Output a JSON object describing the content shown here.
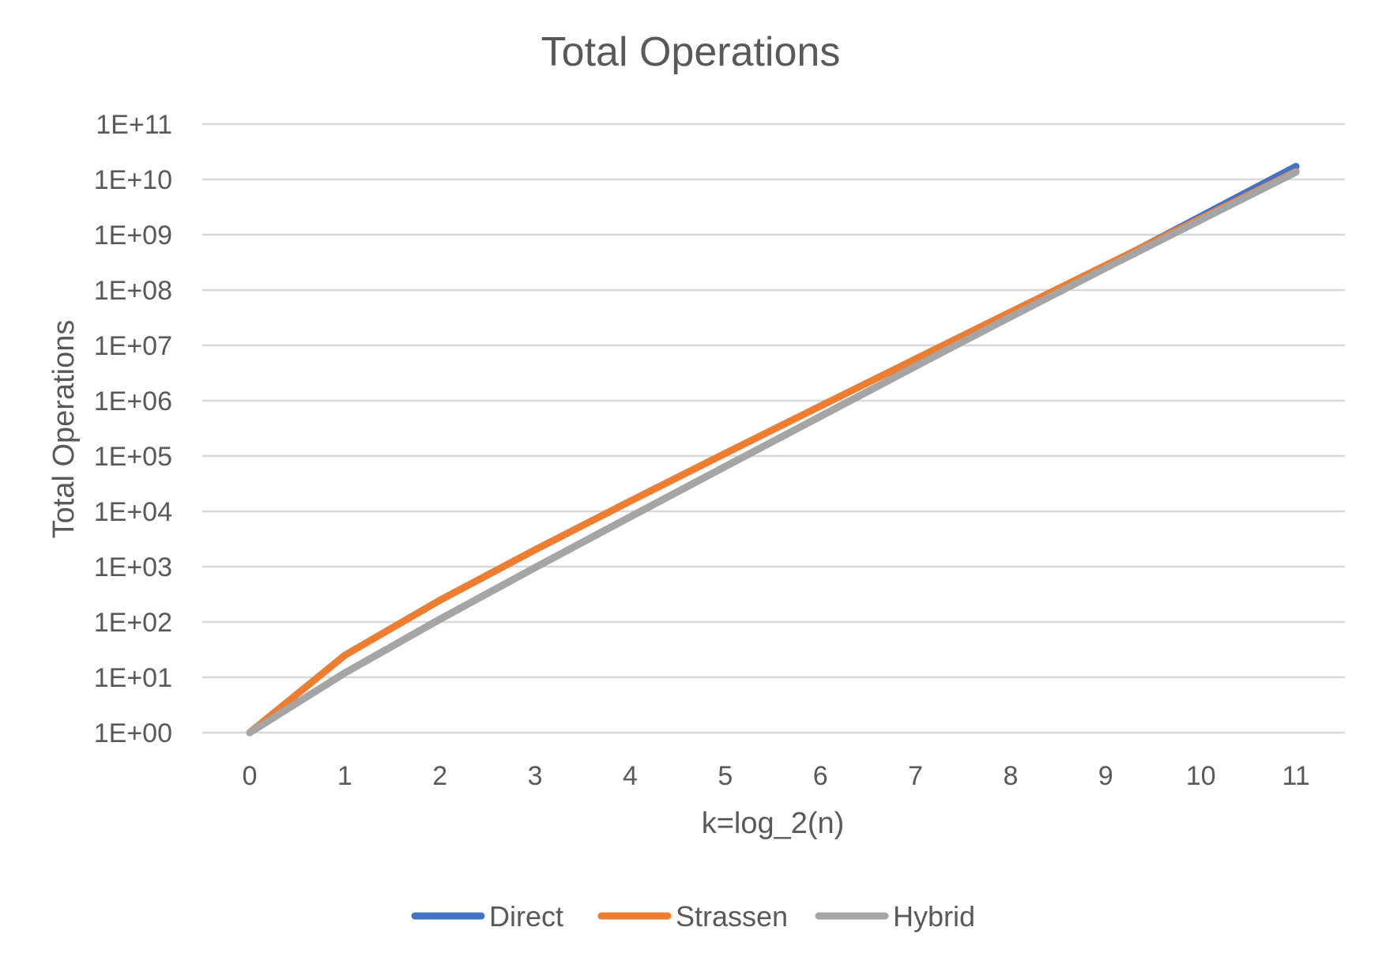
{
  "chart_data": {
    "type": "line",
    "title": "Total Operations",
    "xlabel": "k=log_2(n)",
    "ylabel": "Total Operations",
    "y_scale": "log10",
    "ylim": [
      1,
      100000000000
    ],
    "y_tick_labels": [
      "1E+00",
      "1E+01",
      "1E+02",
      "1E+03",
      "1E+04",
      "1E+05",
      "1E+06",
      "1E+07",
      "1E+08",
      "1E+09",
      "1E+10",
      "1E+11"
    ],
    "x": [
      0,
      1,
      2,
      3,
      4,
      5,
      6,
      7,
      8,
      9,
      10,
      11
    ],
    "x_tick_labels": [
      "0",
      "1",
      "2",
      "3",
      "4",
      "5",
      "6",
      "7",
      "8",
      "9",
      "10",
      "11"
    ],
    "grid": "horizontal",
    "legend_position": "bottom",
    "series": [
      {
        "name": "Direct",
        "color": "#4472c4",
        "values": [
          1,
          12,
          112,
          960,
          7936,
          64512,
          520192,
          4177920,
          33488896,
          268173312,
          2146435072,
          17175674880
        ]
      },
      {
        "name": "Strassen",
        "color": "#ed7d31",
        "values": [
          1,
          25,
          247,
          2017,
          15271,
          111505,
          798967,
          5666497,
          39960391,
          281026705,
          1973527687,
          13852221457
        ]
      },
      {
        "name": "Hybrid",
        "color": "#a5a5a5",
        "values": [
          1,
          12,
          112,
          960,
          7936,
          64512,
          520192,
          4177920,
          32700000,
          250000000,
          1850000000,
          13500000000
        ]
      }
    ]
  }
}
